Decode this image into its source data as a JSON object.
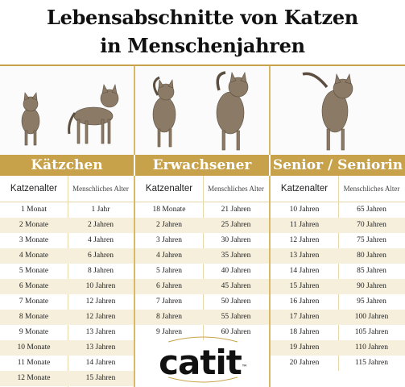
{
  "title": {
    "line1": "Lebensabschnitte von Katzen",
    "line2": "in Menschenjahren"
  },
  "colors": {
    "gold": "#c8a24a",
    "row_alt": "#f6efdc"
  },
  "sections": [
    {
      "banner": "Kätzchen",
      "col_cat": "Katzenalter",
      "col_human": "Menschliches Alter",
      "rows": [
        {
          "cat": "1 Monat",
          "human": "1 Jahr"
        },
        {
          "cat": "2 Monate",
          "human": "2 Jahren"
        },
        {
          "cat": "3 Monate",
          "human": "4 Jahren"
        },
        {
          "cat": "4 Monate",
          "human": "6 Jahren"
        },
        {
          "cat": "5 Monate",
          "human": "8 Jahren"
        },
        {
          "cat": "6 Monate",
          "human": "10 Jahren"
        },
        {
          "cat": "7 Monate",
          "human": "12 Jahren"
        },
        {
          "cat": "8 Monate",
          "human": "12 Jahren"
        },
        {
          "cat": "9 Monate",
          "human": "13 Jahren"
        },
        {
          "cat": "10 Monate",
          "human": "13 Jahren"
        },
        {
          "cat": "11 Monate",
          "human": "14 Jahren"
        },
        {
          "cat": "12 Monate",
          "human": "15 Jahren"
        }
      ]
    },
    {
      "banner": "Erwachsener",
      "col_cat": "Katzenalter",
      "col_human": "Menschliches Alter",
      "rows": [
        {
          "cat": "18 Monate",
          "human": "21 Jahren"
        },
        {
          "cat": "2 Jahren",
          "human": "25 Jahren"
        },
        {
          "cat": "3 Jahren",
          "human": "30 Jahren"
        },
        {
          "cat": "4 Jahren",
          "human": "35 Jahren"
        },
        {
          "cat": "5 Jahren",
          "human": "40 Jahren"
        },
        {
          "cat": "6 Jahren",
          "human": "45 Jahren"
        },
        {
          "cat": "7 Jahren",
          "human": "50 Jahren"
        },
        {
          "cat": "8 Jahren",
          "human": "55 Jahren"
        },
        {
          "cat": "9 Jahren",
          "human": "60 Jahren"
        }
      ]
    },
    {
      "banner": "Senior / Seniorin",
      "col_cat": "Katzenalter",
      "col_human": "Menschliches Alter",
      "rows": [
        {
          "cat": "10 Jahren",
          "human": "65 Jahren"
        },
        {
          "cat": "11 Jahren",
          "human": "70 Jahren"
        },
        {
          "cat": "12 Jahren",
          "human": "75 Jahren"
        },
        {
          "cat": "13 Jahren",
          "human": "80 Jahren"
        },
        {
          "cat": "14 Jahren",
          "human": "85 Jahren"
        },
        {
          "cat": "15 Jahren",
          "human": "90 Jahren"
        },
        {
          "cat": "16 Jahren",
          "human": "95 Jahren"
        },
        {
          "cat": "17 Jahren",
          "human": "100 Jahren"
        },
        {
          "cat": "18 Jahren",
          "human": "105 Jahren"
        },
        {
          "cat": "19 Jahren",
          "human": "110 Jahren"
        },
        {
          "cat": "20 Jahren",
          "human": "115 Jahren"
        }
      ]
    }
  ],
  "logo": {
    "text": "catit",
    "mark": "™"
  }
}
